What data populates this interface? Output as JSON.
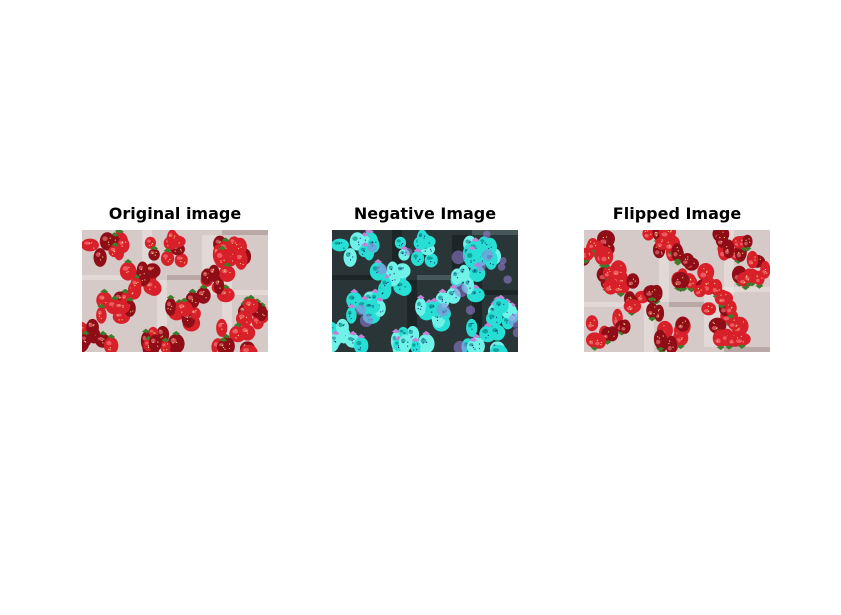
{
  "panels": [
    {
      "title": "Original image",
      "variant": "original"
    },
    {
      "title": "Negative Image",
      "variant": "negative"
    },
    {
      "title": "Flipped Image",
      "variant": "flipped"
    }
  ],
  "colors": {
    "background": "#ffffff",
    "strawberry_red": "#d8202a",
    "strawberry_dark": "#8e0d17",
    "leaf_green": "#3d7d2a",
    "seed_yellow": "#f1d27a",
    "basket_white": "#ece6e4",
    "negative_cyan": "#3fe0d8",
    "negative_purple": "#9a7fdc"
  }
}
